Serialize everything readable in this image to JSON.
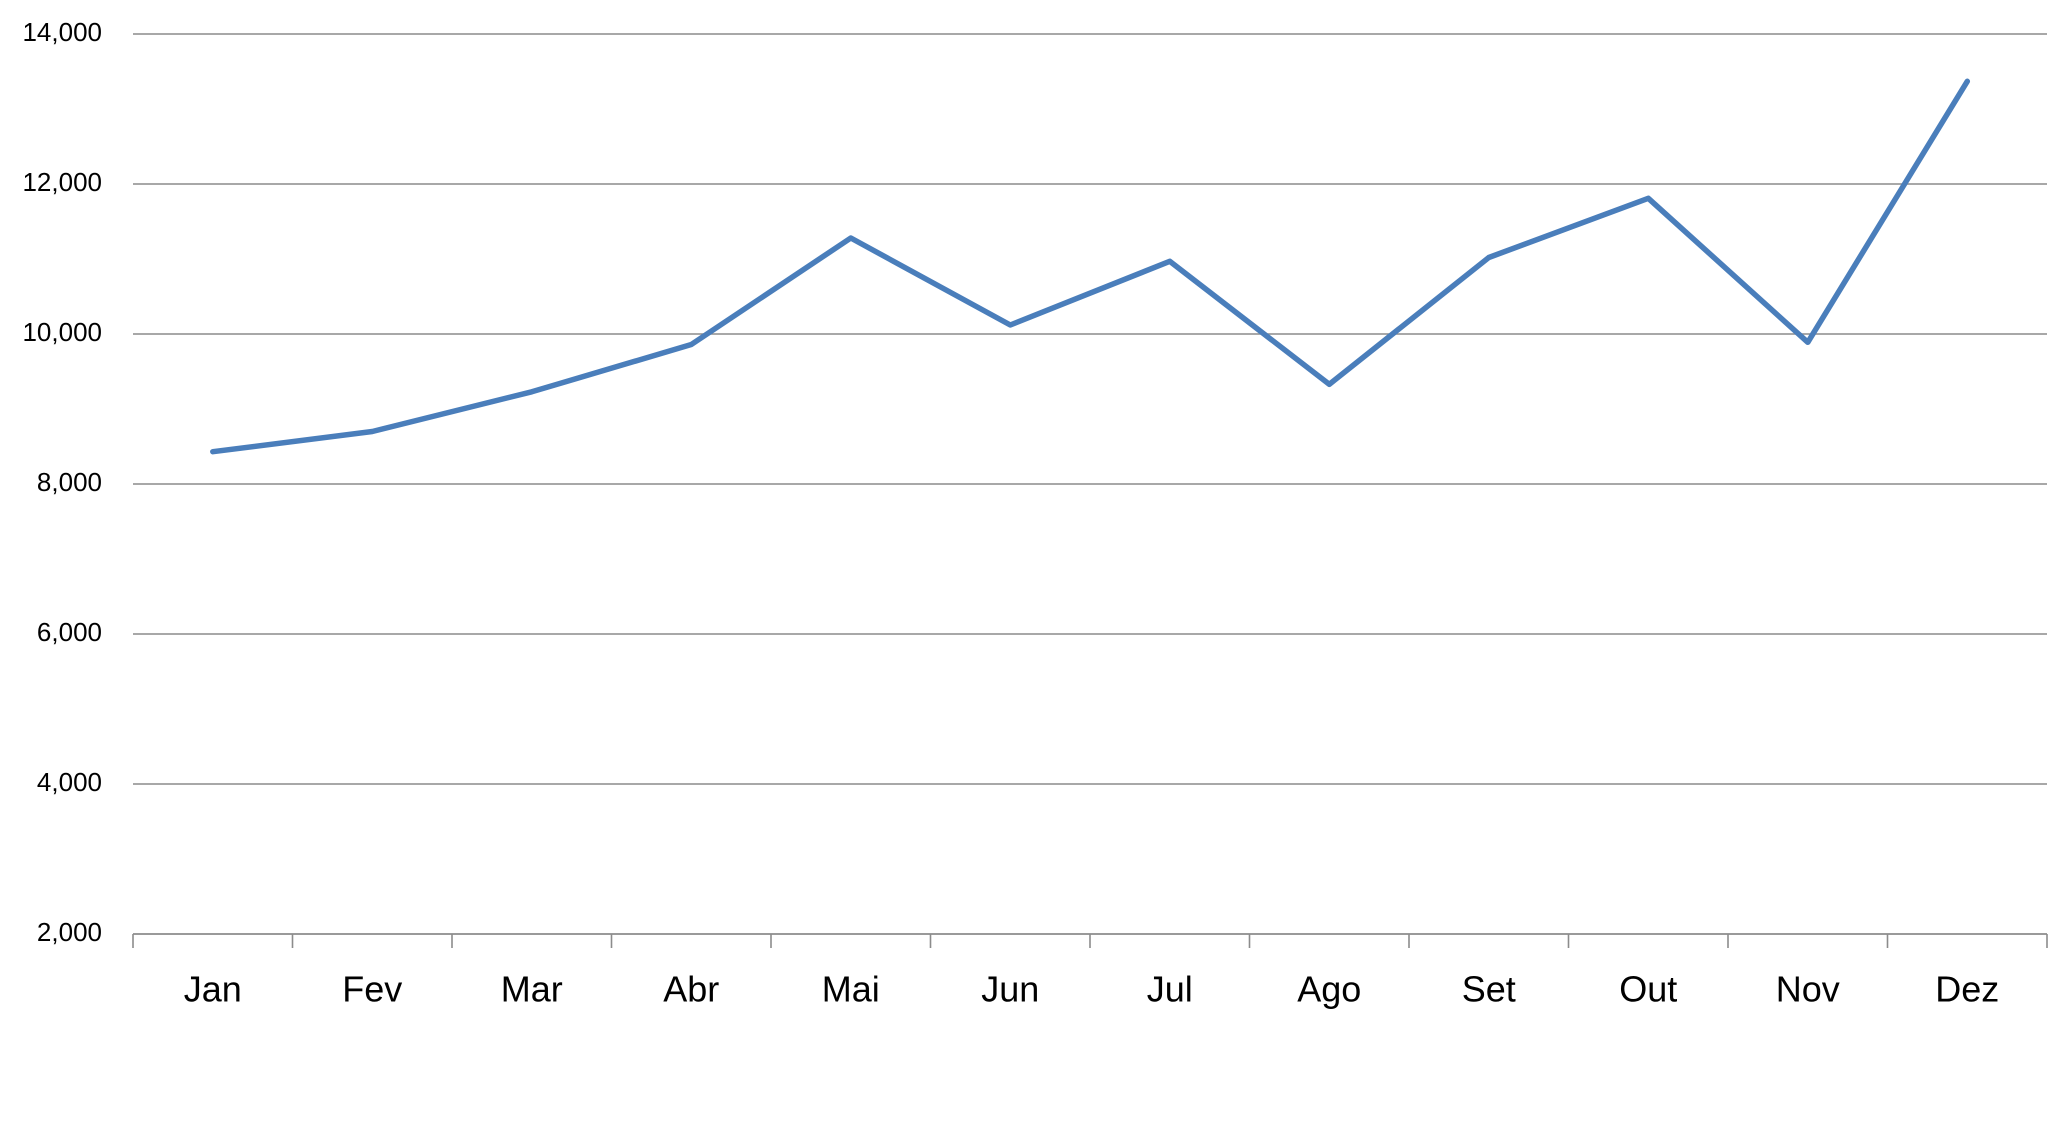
{
  "chart_data": {
    "type": "line",
    "categories": [
      "Jan",
      "Fev",
      "Mar",
      "Abr",
      "Mai",
      "Jun",
      "Jul",
      "Ago",
      "Set",
      "Out",
      "Nov",
      "Dez"
    ],
    "values": [
      8430,
      8700,
      9230,
      9860,
      11280,
      10120,
      10970,
      9330,
      11020,
      11810,
      9890,
      13370
    ],
    "color": "#4a7ebb",
    "ylim": [
      2000,
      14000
    ],
    "yticks": [
      {
        "value": 2000,
        "label": "2,000"
      },
      {
        "value": 4000,
        "label": "4,000"
      },
      {
        "value": 6000,
        "label": "6,000"
      },
      {
        "value": 8000,
        "label": "8,000"
      },
      {
        "value": 10000,
        "label": "10,000"
      },
      {
        "value": 12000,
        "label": "12,000"
      },
      {
        "value": 14000,
        "label": "14,000"
      }
    ],
    "grid": true
  }
}
